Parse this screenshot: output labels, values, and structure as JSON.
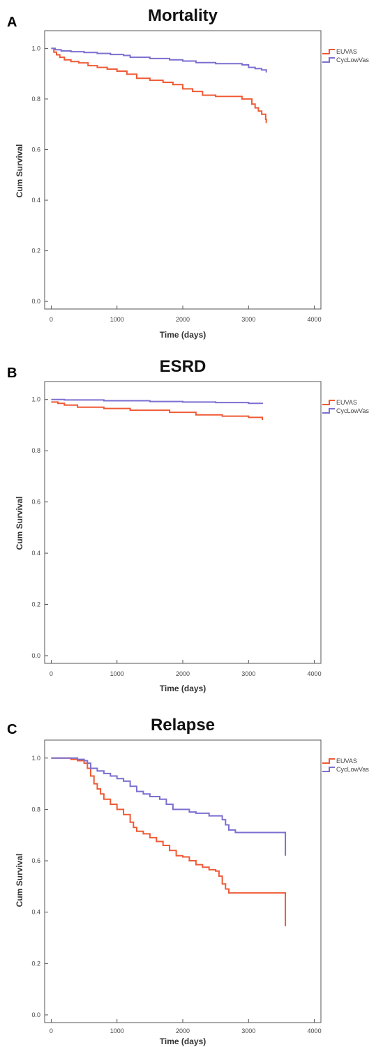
{
  "colors": {
    "EUVAS": "#ef5a35",
    "CycLowVas": "#7b6fd0"
  },
  "chart_data": [
    {
      "panel": "A",
      "type": "line",
      "title": "Mortality",
      "xlabel": "Time (days)",
      "ylabel": "Cum Survival",
      "xlim": [
        -100,
        4100
      ],
      "ylim": [
        -0.03,
        1.07
      ],
      "xticks": [
        "0",
        "1000",
        "2000",
        "3000",
        "4000"
      ],
      "yticks": [
        "0.0",
        "0.2",
        "0.4",
        "0.6",
        "0.8",
        "1.0"
      ],
      "legend": [
        "EUVAS",
        "CycLowVas"
      ],
      "legend_position": "outside-right-top",
      "series": [
        {
          "name": "EUVAS",
          "x": [
            0,
            40,
            80,
            130,
            200,
            300,
            420,
            560,
            700,
            850,
            1000,
            1150,
            1300,
            1500,
            1700,
            1850,
            2000,
            2150,
            2300,
            2500,
            2800,
            2900,
            3000,
            3050,
            3100,
            3150,
            3200,
            3250,
            3260,
            3270
          ],
          "y": [
            1.0,
            0.985,
            0.975,
            0.965,
            0.955,
            0.948,
            0.943,
            0.932,
            0.925,
            0.918,
            0.91,
            0.898,
            0.882,
            0.874,
            0.866,
            0.857,
            0.84,
            0.83,
            0.815,
            0.81,
            0.81,
            0.8,
            0.8,
            0.78,
            0.765,
            0.752,
            0.74,
            0.74,
            0.72,
            0.705
          ]
        },
        {
          "name": "CycLowVas",
          "x": [
            0,
            60,
            150,
            300,
            500,
            700,
            900,
            1100,
            1200,
            1500,
            1800,
            2000,
            2200,
            2500,
            2800,
            2900,
            3000,
            3100,
            3200,
            3250,
            3270
          ],
          "y": [
            1.0,
            0.995,
            0.99,
            0.987,
            0.984,
            0.98,
            0.976,
            0.972,
            0.965,
            0.96,
            0.955,
            0.95,
            0.944,
            0.94,
            0.94,
            0.935,
            0.925,
            0.92,
            0.915,
            0.915,
            0.905
          ]
        }
      ]
    },
    {
      "panel": "B",
      "type": "line",
      "title": "ESRD",
      "xlabel": "Time (days)",
      "ylabel": "Cum Survival",
      "xlim": [
        -100,
        4100
      ],
      "ylim": [
        -0.03,
        1.07
      ],
      "xticks": [
        "0",
        "1000",
        "2000",
        "3000",
        "4000"
      ],
      "yticks": [
        "0.0",
        "0.2",
        "0.4",
        "0.6",
        "0.8",
        "1.0"
      ],
      "legend": [
        "EUVAS",
        "CycLowVas"
      ],
      "legend_position": "outside-right-top",
      "series": [
        {
          "name": "EUVAS",
          "x": [
            0,
            100,
            200,
            400,
            800,
            1200,
            1800,
            2200,
            2600,
            3000,
            3200,
            3210
          ],
          "y": [
            0.99,
            0.985,
            0.978,
            0.97,
            0.965,
            0.958,
            0.95,
            0.94,
            0.935,
            0.93,
            0.93,
            0.92
          ]
        },
        {
          "name": "CycLowVas",
          "x": [
            0,
            200,
            800,
            1500,
            2000,
            2500,
            3000,
            3200,
            3210
          ],
          "y": [
            1.0,
            0.998,
            0.995,
            0.992,
            0.99,
            0.988,
            0.985,
            0.985,
            0.983
          ]
        }
      ]
    },
    {
      "panel": "C",
      "type": "line",
      "title": "Relapse",
      "xlabel": "Time (days)",
      "ylabel": "Cum Survival",
      "xlim": [
        -100,
        4100
      ],
      "ylim": [
        -0.03,
        1.07
      ],
      "xticks": [
        "0",
        "1000",
        "2000",
        "3000",
        "4000"
      ],
      "yticks": [
        "0.0",
        "0.2",
        "0.4",
        "0.6",
        "0.8",
        "1.0"
      ],
      "legend": [
        "EUVAS",
        "CycLowVas"
      ],
      "legend_position": "outside-right-top",
      "series": [
        {
          "name": "EUVAS",
          "x": [
            0,
            300,
            400,
            500,
            550,
            600,
            650,
            700,
            750,
            800,
            900,
            1000,
            1100,
            1200,
            1250,
            1300,
            1400,
            1500,
            1600,
            1700,
            1800,
            1900,
            2000,
            2100,
            2200,
            2300,
            2400,
            2500,
            2550,
            2600,
            2650,
            2700,
            3000,
            3300,
            3550,
            3560
          ],
          "y": [
            1.0,
            0.995,
            0.99,
            0.98,
            0.96,
            0.93,
            0.9,
            0.88,
            0.86,
            0.84,
            0.82,
            0.8,
            0.78,
            0.75,
            0.73,
            0.715,
            0.705,
            0.69,
            0.675,
            0.66,
            0.64,
            0.62,
            0.615,
            0.6,
            0.585,
            0.575,
            0.565,
            0.56,
            0.54,
            0.51,
            0.49,
            0.475,
            0.475,
            0.475,
            0.475,
            0.345
          ]
        },
        {
          "name": "CycLowVas",
          "x": [
            0,
            400,
            500,
            550,
            600,
            700,
            800,
            900,
            1000,
            1100,
            1200,
            1300,
            1400,
            1500,
            1650,
            1750,
            1850,
            2000,
            2100,
            2200,
            2400,
            2600,
            2650,
            2700,
            2800,
            3200,
            3550,
            3560
          ],
          "y": [
            1.0,
            0.995,
            0.99,
            0.98,
            0.96,
            0.95,
            0.94,
            0.93,
            0.92,
            0.91,
            0.89,
            0.87,
            0.86,
            0.85,
            0.84,
            0.82,
            0.8,
            0.8,
            0.79,
            0.785,
            0.775,
            0.76,
            0.74,
            0.72,
            0.71,
            0.71,
            0.71,
            0.62
          ]
        }
      ]
    }
  ]
}
